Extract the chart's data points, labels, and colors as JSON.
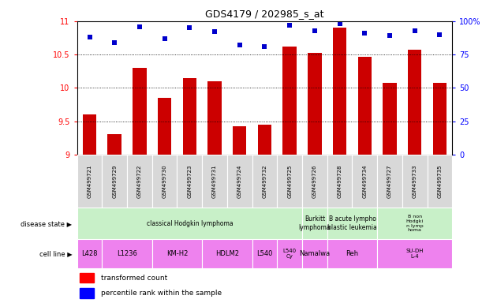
{
  "title": "GDS4179 / 202985_s_at",
  "samples": [
    "GSM499721",
    "GSM499729",
    "GSM499722",
    "GSM499730",
    "GSM499723",
    "GSM499731",
    "GSM499724",
    "GSM499732",
    "GSM499725",
    "GSM499726",
    "GSM499728",
    "GSM499734",
    "GSM499727",
    "GSM499733",
    "GSM499735"
  ],
  "transformed_count": [
    9.6,
    9.3,
    10.3,
    9.85,
    10.15,
    10.1,
    9.42,
    9.45,
    10.62,
    10.52,
    10.9,
    10.47,
    10.07,
    10.57,
    10.07
  ],
  "percentile_rank": [
    88,
    84,
    96,
    87,
    95,
    92,
    82,
    81,
    97,
    93,
    98,
    91,
    89,
    93,
    90
  ],
  "ylim_left": [
    9,
    11
  ],
  "ylim_right": [
    0,
    100
  ],
  "yticks_left": [
    9,
    9.5,
    10,
    10.5,
    11
  ],
  "yticks_right": [
    0,
    25,
    50,
    75,
    100
  ],
  "bar_color": "#cc0000",
  "dot_color": "#0000cc",
  "xtick_bg": "#c8c8c8",
  "cell_lines": [
    {
      "label": "L428",
      "start": 0,
      "end": 1,
      "color": "#ee82ee"
    },
    {
      "label": "L1236",
      "start": 1,
      "end": 3,
      "color": "#ee82ee"
    },
    {
      "label": "KM-H2",
      "start": 3,
      "end": 5,
      "color": "#ee82ee"
    },
    {
      "label": "HDLM2",
      "start": 5,
      "end": 7,
      "color": "#ee82ee"
    },
    {
      "label": "L540",
      "start": 7,
      "end": 8,
      "color": "#ee82ee"
    },
    {
      "label": "L540\nCy",
      "start": 8,
      "end": 9,
      "color": "#ee82ee"
    },
    {
      "label": "Namalwa",
      "start": 9,
      "end": 10,
      "color": "#ee82ee"
    },
    {
      "label": "Reh",
      "start": 10,
      "end": 12,
      "color": "#ee82ee"
    },
    {
      "label": "SU-DH\nL-4",
      "start": 12,
      "end": 15,
      "color": "#ee82ee"
    }
  ],
  "disease_states": [
    {
      "label": "classical Hodgkin lymphoma",
      "start": 0,
      "end": 9,
      "color": "#c8f0c8"
    },
    {
      "label": "Burkitt\nlymphoma",
      "start": 9,
      "end": 10,
      "color": "#c8f0c8"
    },
    {
      "label": "B acute lympho\nblastic leukemia",
      "start": 10,
      "end": 12,
      "color": "#c8f0c8"
    },
    {
      "label": "B non\nHodgki\nn lymp\nhoma",
      "start": 12,
      "end": 15,
      "color": "#c8f0c8"
    }
  ]
}
